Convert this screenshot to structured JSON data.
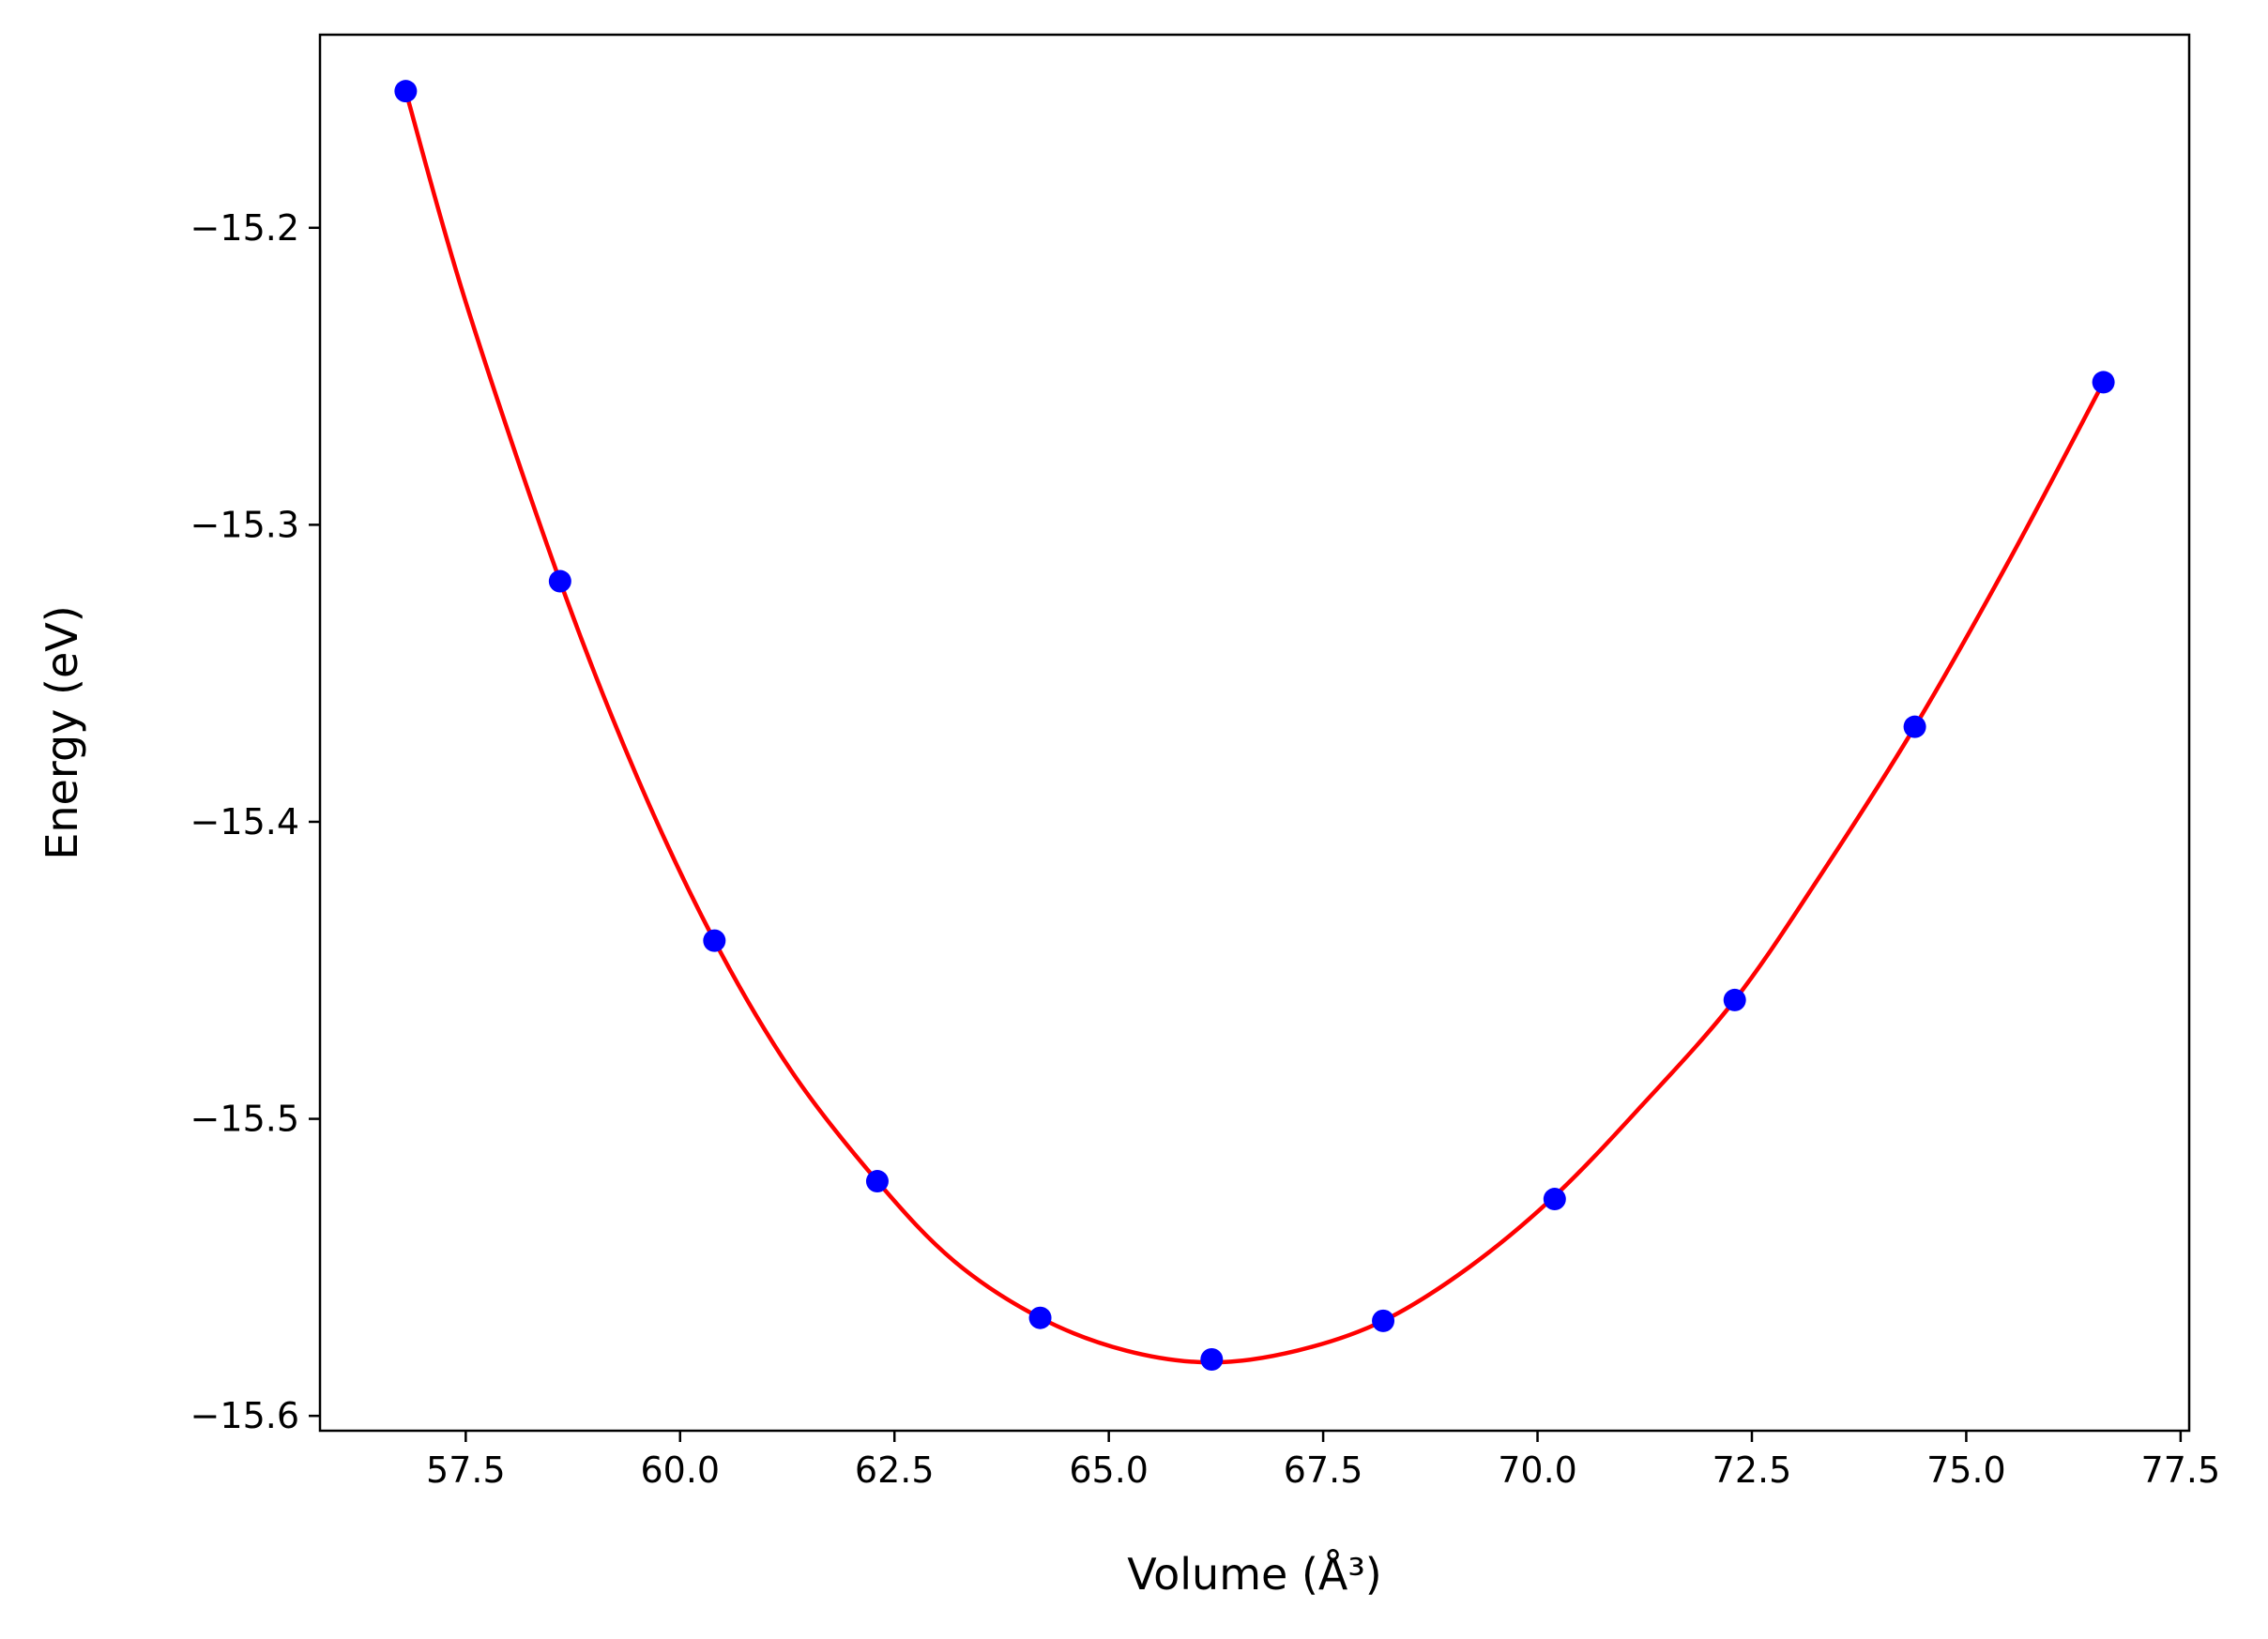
{
  "chart_data": {
    "type": "scatter",
    "title": "",
    "xlabel": "Volume (Å³)",
    "ylabel": "Energy (eV)",
    "xlim": [
      55.8,
      77.6
    ],
    "ylim": [
      -15.605,
      -15.135
    ],
    "xticks": [
      57.5,
      60.0,
      62.5,
      65.0,
      67.5,
      70.0,
      72.5,
      75.0,
      77.5
    ],
    "xtick_labels": [
      "57.5",
      "60.0",
      "62.5",
      "65.0",
      "67.5",
      "70.0",
      "72.5",
      "75.0",
      "77.5"
    ],
    "yticks": [
      -15.2,
      -15.3,
      -15.4,
      -15.5,
      -15.6
    ],
    "ytick_labels": [
      "−15.2",
      "−15.3",
      "−15.4",
      "−15.5",
      "−15.6"
    ],
    "grid": false,
    "series": [
      {
        "kind": "points",
        "color": "#0000ff",
        "x": [
          56.8,
          58.6,
          60.4,
          62.3,
          64.2,
          66.2,
          68.2,
          70.2,
          72.3,
          74.4,
          76.6
        ],
        "y": [
          -15.154,
          -15.319,
          -15.44,
          -15.521,
          -15.567,
          -15.581,
          -15.568,
          -15.527,
          -15.46,
          -15.368,
          -15.252
        ]
      },
      {
        "kind": "fit",
        "color": "#ff0000",
        "x": [
          56.8,
          57.5,
          58.6,
          59.5,
          60.4,
          61.3,
          62.3,
          63.2,
          64.2,
          65.2,
          66.2,
          67.2,
          68.2,
          69.2,
          70.2,
          71.2,
          72.3,
          73.3,
          74.4,
          75.5,
          76.6
        ],
        "y": [
          -15.154,
          -15.225,
          -15.319,
          -15.385,
          -15.44,
          -15.484,
          -15.521,
          -15.548,
          -15.567,
          -15.578,
          -15.582,
          -15.578,
          -15.568,
          -15.55,
          -15.526,
          -15.496,
          -15.46,
          -15.418,
          -15.368,
          -15.312,
          -15.252
        ]
      }
    ]
  }
}
